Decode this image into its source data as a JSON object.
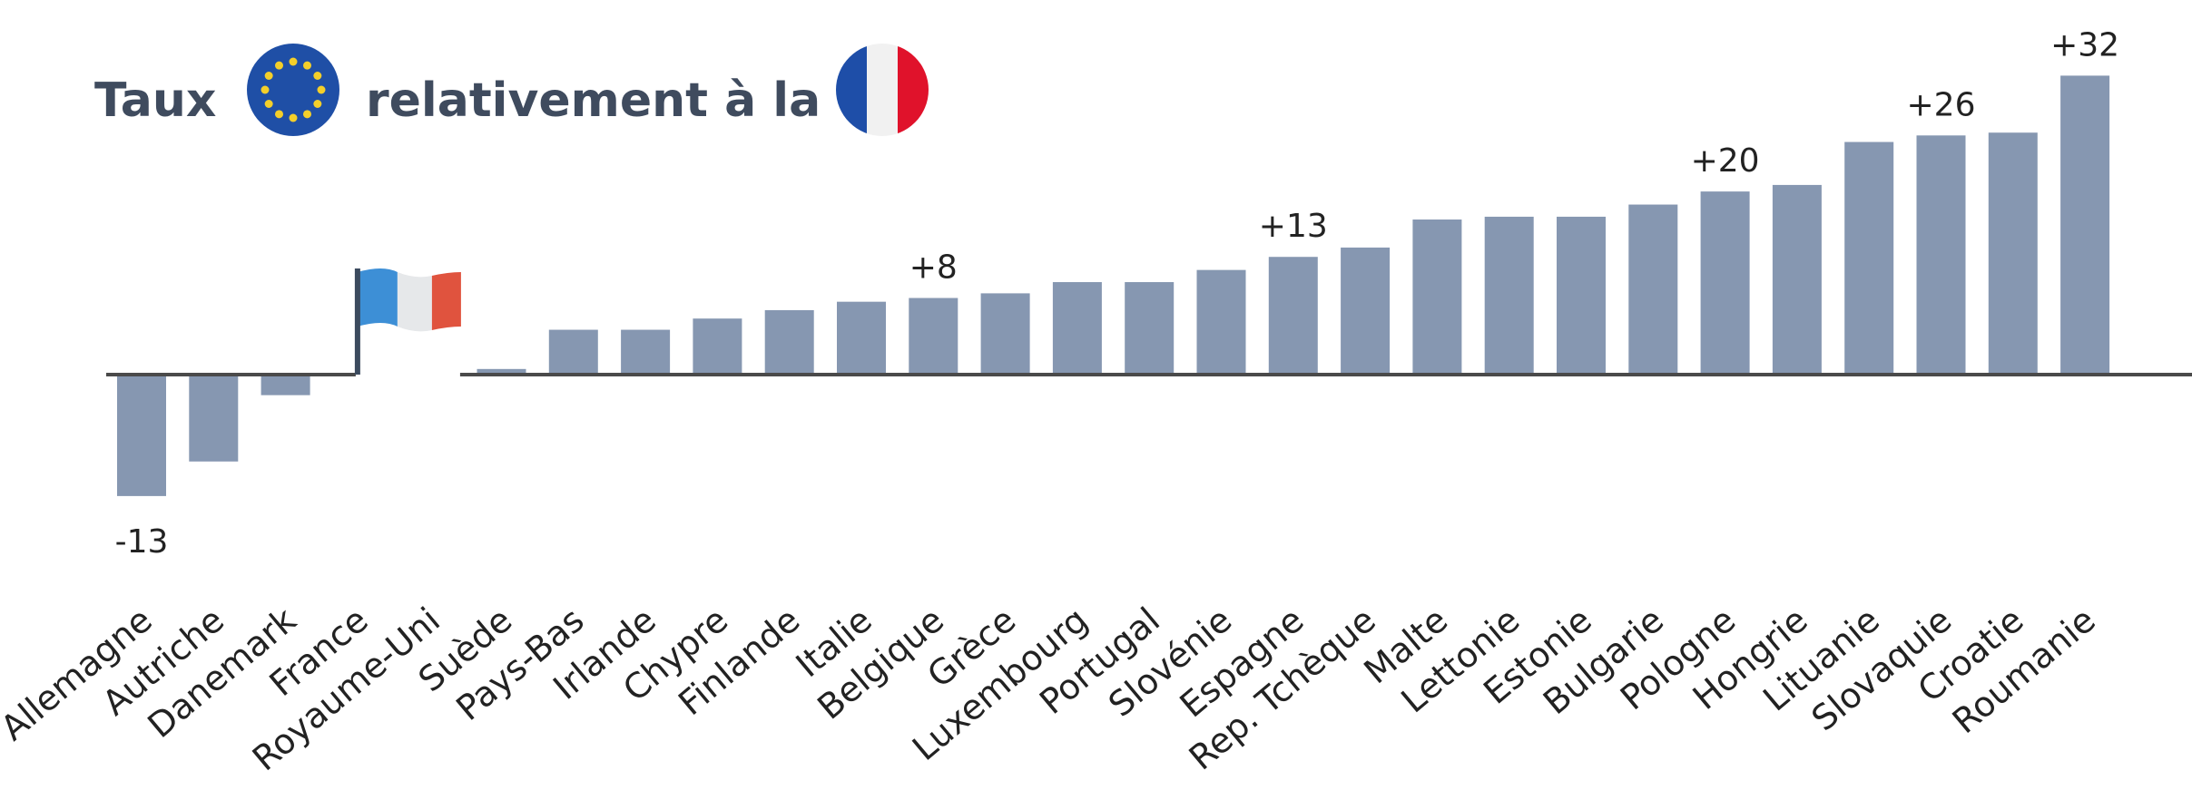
{
  "title_start": "Taux",
  "title_end": "relativement à la",
  "chart_data": {
    "type": "bar",
    "color": "#8697b1",
    "categories": [
      "Allemagne",
      "Autriche",
      "Danemark",
      "France",
      "Royaume-Uni",
      "Suède",
      "Pays-Bas",
      "Irlande",
      "Chypre",
      "Finlande",
      "Italie",
      "Belgique",
      "Grèce",
      "Luxembourg",
      "Portugal",
      "Slovénie",
      "Espagne",
      "Rep. Tchèque",
      "Malte",
      "Lettonie",
      "Estonie",
      "Bulgarie",
      "Pologne",
      "Hongrie",
      "Lituanie",
      "Slovaquie",
      "Croatie",
      "Roumanie"
    ],
    "values": [
      -13,
      -9.3,
      -2.2,
      0,
      0,
      0.6,
      4.8,
      4.8,
      6,
      6.9,
      7.8,
      8.2,
      8.7,
      9.9,
      9.9,
      11.2,
      12.6,
      13.6,
      16.6,
      16.9,
      16.9,
      18.2,
      19.6,
      20.3,
      24.9,
      25.6,
      25.9,
      32
    ],
    "value_labels": [
      "-13",
      null,
      null,
      null,
      null,
      null,
      null,
      null,
      null,
      null,
      null,
      "+8",
      null,
      null,
      null,
      null,
      "+13",
      null,
      null,
      null,
      null,
      null,
      "+20",
      null,
      null,
      "+26",
      null,
      "+32"
    ]
  }
}
